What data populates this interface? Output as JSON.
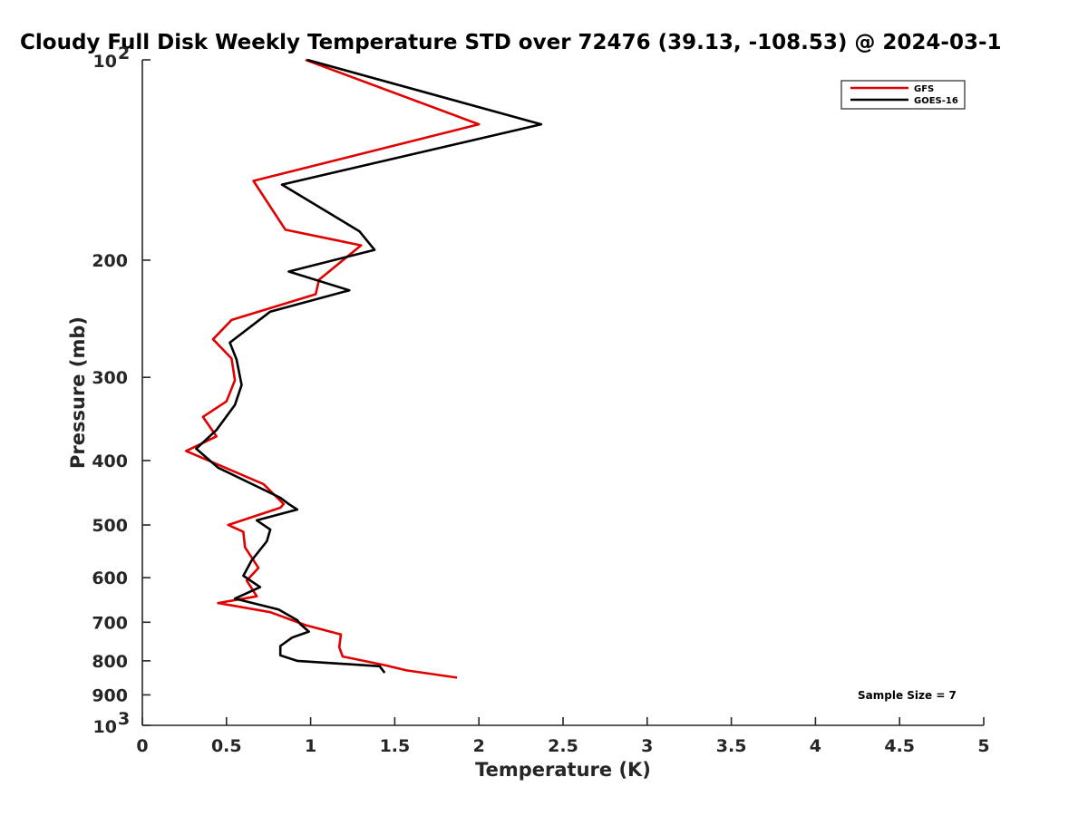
{
  "chart_data": {
    "type": "line",
    "title": "Cloudy Full Disk Weekly Temperature STD over 72476 (39.13, -108.53) @ 2024-03-1",
    "xlabel": "Temperature (K)",
    "ylabel": "Pressure (mb)",
    "xlim": [
      0,
      5
    ],
    "ylim": [
      100,
      1000
    ],
    "y_scale": "log",
    "y_reversed": true,
    "x_ticks": [
      0,
      0.5,
      1,
      1.5,
      2,
      2.5,
      3,
      3.5,
      4,
      4.5,
      5
    ],
    "x_tick_labels": [
      "0",
      "0.5",
      "1",
      "1.5",
      "2",
      "2.5",
      "3",
      "3.5",
      "4",
      "4.5",
      "5"
    ],
    "y_ticks": [
      200,
      300,
      400,
      500,
      600,
      700,
      800,
      900
    ],
    "y_tick_labels": [
      "200",
      "300",
      "400",
      "500",
      "600",
      "700",
      "800",
      "900"
    ],
    "y_edge_labels": [
      {
        "value": 100,
        "base": "10",
        "exp": "2"
      },
      {
        "value": 1000,
        "base": "10",
        "exp": "3"
      }
    ],
    "grid": false,
    "legend_position": "top-right",
    "annotation": "Sample Size = 7",
    "series": [
      {
        "name": "GFS",
        "color": "#e00000",
        "points": [
          [
            0.97,
            100
          ],
          [
            2.0,
            125
          ],
          [
            0.66,
            152
          ],
          [
            0.85,
            180
          ],
          [
            1.3,
            190
          ],
          [
            1.05,
            214
          ],
          [
            1.03,
            225
          ],
          [
            0.53,
            246
          ],
          [
            0.42,
            263
          ],
          [
            0.53,
            281
          ],
          [
            0.55,
            303
          ],
          [
            0.5,
            326
          ],
          [
            0.36,
            344
          ],
          [
            0.44,
            368
          ],
          [
            0.26,
            387
          ],
          [
            0.72,
            434
          ],
          [
            0.84,
            465
          ],
          [
            0.82,
            471
          ],
          [
            0.51,
            500
          ],
          [
            0.6,
            512
          ],
          [
            0.61,
            540
          ],
          [
            0.69,
            580
          ],
          [
            0.62,
            606
          ],
          [
            0.68,
            640
          ],
          [
            0.45,
            655
          ],
          [
            0.76,
            676
          ],
          [
            0.97,
            707
          ],
          [
            1.18,
            730
          ],
          [
            1.17,
            763
          ],
          [
            1.19,
            788
          ],
          [
            1.44,
            812
          ],
          [
            1.57,
            827
          ],
          [
            1.87,
            848
          ]
        ]
      },
      {
        "name": "GOES-16",
        "color": "#000000",
        "points": [
          [
            0.98,
            100
          ],
          [
            2.37,
            125
          ],
          [
            0.83,
            154
          ],
          [
            1.29,
            181
          ],
          [
            1.38,
            193
          ],
          [
            0.87,
            208
          ],
          [
            1.23,
            222
          ],
          [
            0.76,
            239
          ],
          [
            0.52,
            266
          ],
          [
            0.56,
            282
          ],
          [
            0.59,
            308
          ],
          [
            0.55,
            330
          ],
          [
            0.44,
            360
          ],
          [
            0.32,
            384
          ],
          [
            0.45,
            410
          ],
          [
            0.82,
            455
          ],
          [
            0.87,
            465
          ],
          [
            0.92,
            474
          ],
          [
            0.68,
            492
          ],
          [
            0.76,
            508
          ],
          [
            0.74,
            529
          ],
          [
            0.65,
            565
          ],
          [
            0.6,
            596
          ],
          [
            0.7,
            620
          ],
          [
            0.55,
            645
          ],
          [
            0.81,
            670
          ],
          [
            0.92,
            695
          ],
          [
            0.94,
            705
          ],
          [
            0.99,
            723
          ],
          [
            0.89,
            738
          ],
          [
            0.82,
            760
          ],
          [
            0.82,
            785
          ],
          [
            0.92,
            800
          ],
          [
            1.41,
            815
          ],
          [
            1.44,
            834
          ]
        ]
      }
    ]
  }
}
